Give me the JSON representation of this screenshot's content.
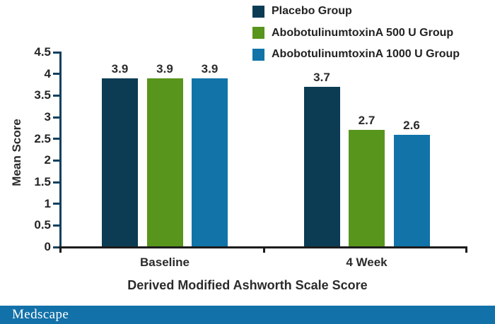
{
  "figure": {
    "background": "#ffffff"
  },
  "chart_data": {
    "type": "bar",
    "title": "",
    "categories": [
      "Baseline",
      "4 Week"
    ],
    "series": [
      {
        "name": "Placebo Group",
        "color": "#0c3c54",
        "values": [
          3.9,
          3.7
        ]
      },
      {
        "name": "AbobotulinumtoxinA 500 U Group",
        "color": "#58951c",
        "values": [
          3.9,
          2.7
        ]
      },
      {
        "name": "AbobotulinumtoxinA 1000 U Group",
        "color": "#1173a8",
        "values": [
          3.9,
          2.6
        ]
      }
    ],
    "xlabel": "Derived Modified Ashworth Scale Score",
    "ylabel": "Mean Score",
    "ylim": [
      0,
      4.5
    ],
    "ytick_labels": [
      "0",
      "0.5",
      "1",
      "1.5",
      "2",
      "2.5",
      "3",
      "3.5",
      "4",
      "4.5"
    ],
    "value_label_format": "one_decimal",
    "legend_position": "top-right",
    "grid": false,
    "axis_colors": {
      "y_axis": "#12405f",
      "x_axis": "#1c1c1c"
    }
  },
  "footer": {
    "brand": "Medscape",
    "bar_color": "#1371a9",
    "text_color": "#ffffff"
  }
}
